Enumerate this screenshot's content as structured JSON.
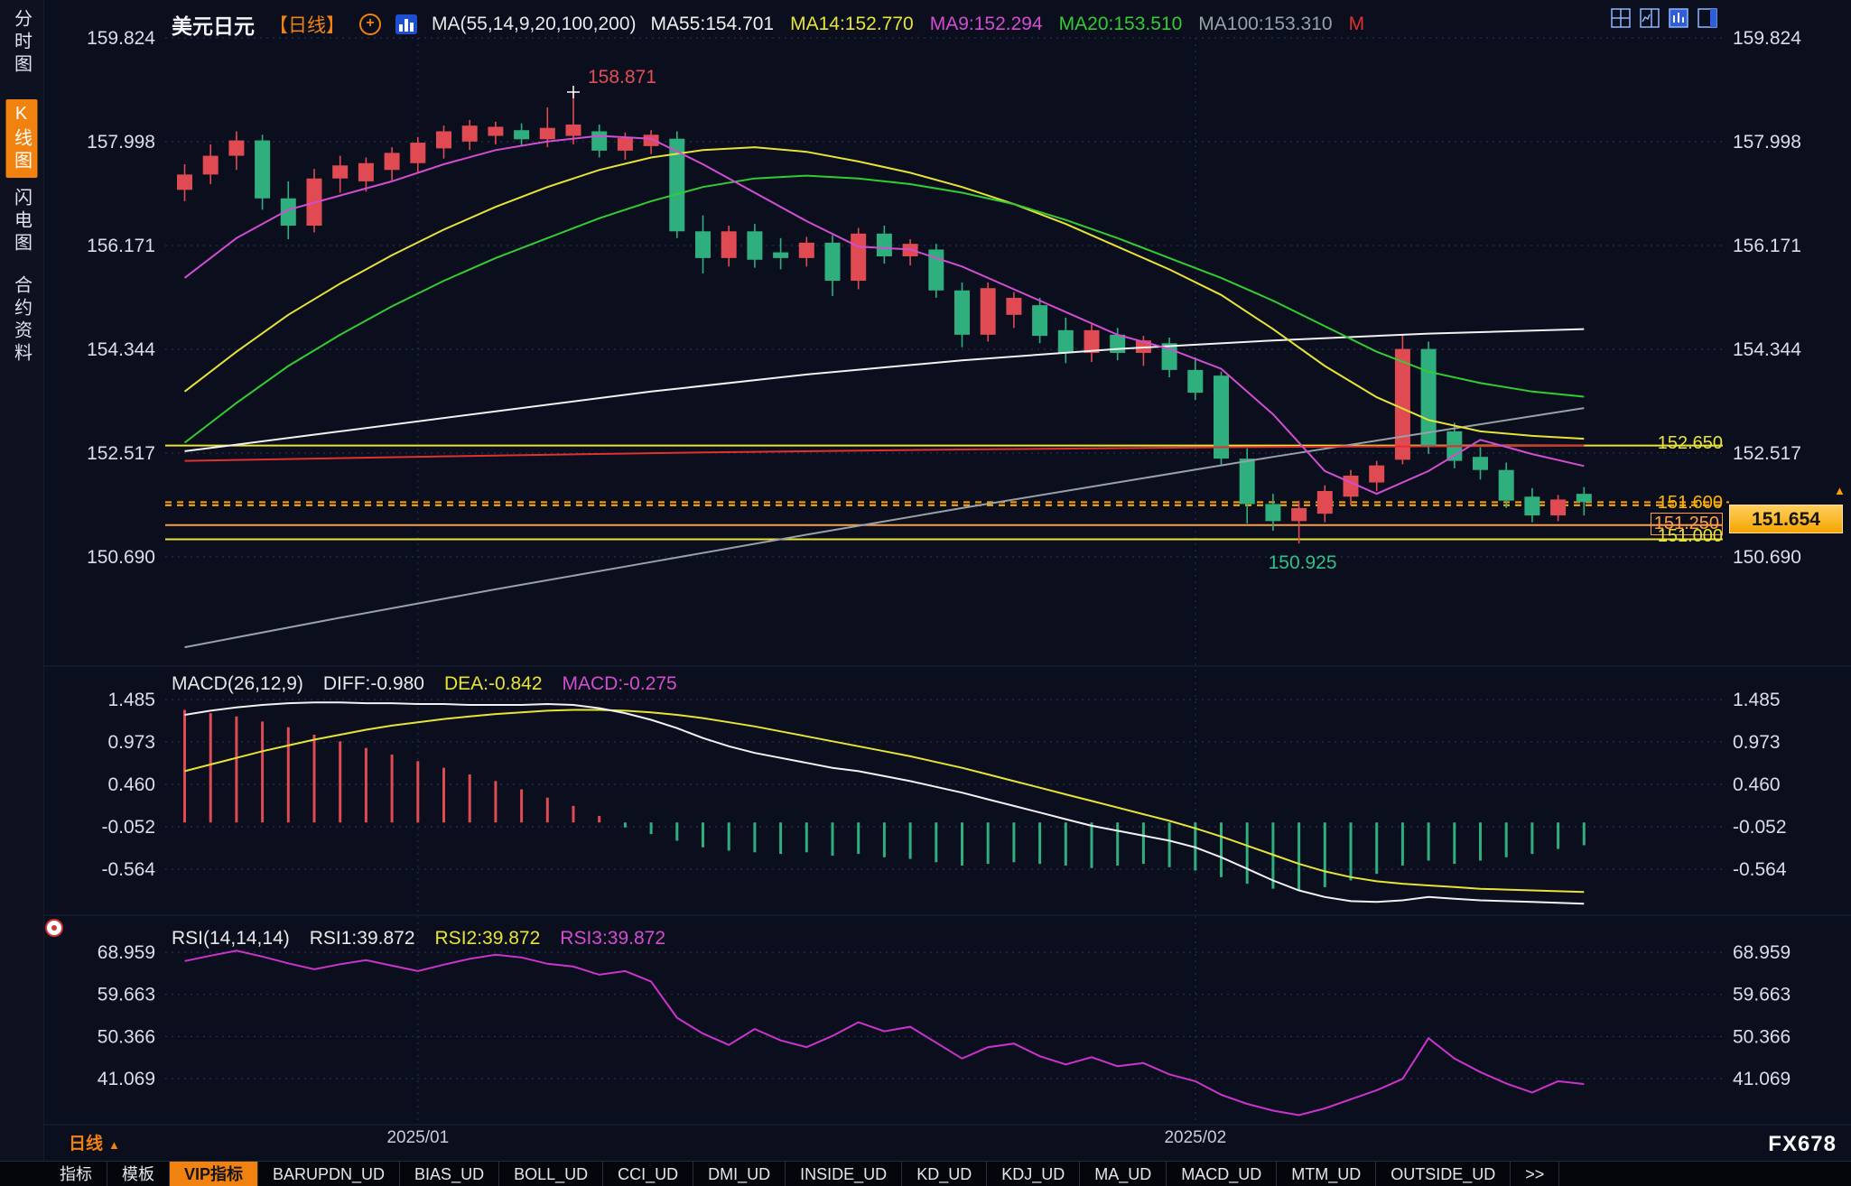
{
  "colors": {
    "bg": "#0b0f1d",
    "up": "#e04a52",
    "down": "#2fae7e",
    "grid": "#2b3456",
    "accent_orange": "#f28210",
    "yellow_line": "#e8e337",
    "price_box": "#f5a500"
  },
  "icons": {
    "plus": "+",
    "up_triangle": "▲"
  },
  "sidebar": {
    "items": [
      {
        "label": "分时图",
        "active": false
      },
      {
        "label": "K线图",
        "active": true
      },
      {
        "label": "闪电图",
        "active": false
      },
      {
        "label": "合约资料",
        "active": false
      }
    ]
  },
  "header": {
    "symbol": "美元日元",
    "period": "【日线】",
    "ma_group": "MA(55,14,9,20,100,200)",
    "ma_values": [
      {
        "label": "MA55:154.701",
        "color": "#f2f2f2"
      },
      {
        "label": "MA14:152.770",
        "color": "#e8e337"
      },
      {
        "label": "MA9:152.294",
        "color": "#d24dd2"
      },
      {
        "label": "MA20:153.510",
        "color": "#33cc33"
      },
      {
        "label": "MA100:153.310",
        "color": "#9aa0a8"
      },
      {
        "label": "M",
        "color": "#e0312e"
      }
    ]
  },
  "macd_header": {
    "title": "MACD(26,12,9)",
    "diff": "DIFF:-0.980",
    "dea": "DEA:-0.842",
    "macd": "MACD:-0.275"
  },
  "rsi_header": {
    "title": "RSI(14,14,14)",
    "rsi1": "RSI1:39.872",
    "rsi2": "RSI2:39.872",
    "rsi3": "RSI3:39.872"
  },
  "annotations": {
    "high": "158.871",
    "low": "150.925"
  },
  "last_price": {
    "label": "151.654",
    "value": 151.654
  },
  "price_lines": [
    {
      "label": "152.650",
      "value": 152.65,
      "color": "#e8e337",
      "style": "solid"
    },
    {
      "label": "151.600",
      "value": 151.6,
      "color": "#ffb400",
      "style": "dashed"
    },
    {
      "label": "151.250",
      "value": 151.25,
      "color": "#ff9d45",
      "style": "solid",
      "boxed": true
    },
    {
      "label": "151.000",
      "value": 151.0,
      "color": "#e8e337",
      "style": "solid"
    }
  ],
  "x_labels": [
    {
      "label": "2025/01",
      "index": 9
    },
    {
      "label": "2025/02",
      "index": 39
    }
  ],
  "period_badge": {
    "label": "日线",
    "arrow": "▲"
  },
  "watermark": "FX678",
  "bottom_tabs": [
    {
      "label": "指标"
    },
    {
      "label": "模板"
    },
    {
      "label": "VIP指标",
      "accent": true
    },
    {
      "label": "BARUPDN_UD"
    },
    {
      "label": "BIAS_UD"
    },
    {
      "label": "BOLL_UD"
    },
    {
      "label": "CCI_UD"
    },
    {
      "label": "DMI_UD"
    },
    {
      "label": "INSIDE_UD"
    },
    {
      "label": "KD_UD"
    },
    {
      "label": "KDJ_UD"
    },
    {
      "label": "MA_UD"
    },
    {
      "label": "MACD_UD"
    },
    {
      "label": "MTM_UD"
    },
    {
      "label": "OUTSIDE_UD"
    },
    {
      "label": ">>"
    }
  ],
  "chart_data": {
    "type": "candlestick",
    "title": "美元日元 日线 (USD/JPY Daily)",
    "ohlc_format": "[open, high, low, close]",
    "price_axis_ticks": [
      159.824,
      157.998,
      156.171,
      154.344,
      152.517,
      150.69
    ],
    "macd_axis_ticks": [
      1.485,
      0.973,
      0.46,
      -0.052,
      -0.564
    ],
    "rsi_axis_ticks": [
      68.959,
      59.663,
      50.366,
      41.069
    ],
    "candles": [
      [
        157.15,
        157.6,
        156.95,
        157.42
      ],
      [
        157.42,
        157.95,
        157.25,
        157.75
      ],
      [
        157.75,
        158.18,
        157.5,
        158.02
      ],
      [
        158.02,
        158.12,
        156.8,
        157.0
      ],
      [
        157.0,
        157.3,
        156.28,
        156.52
      ],
      [
        156.52,
        157.52,
        156.4,
        157.35
      ],
      [
        157.35,
        157.75,
        157.1,
        157.58
      ],
      [
        157.3,
        157.72,
        157.12,
        157.62
      ],
      [
        157.5,
        157.9,
        157.32,
        157.8
      ],
      [
        157.62,
        158.08,
        157.45,
        157.98
      ],
      [
        157.88,
        158.28,
        157.7,
        158.18
      ],
      [
        158.0,
        158.38,
        157.85,
        158.28
      ],
      [
        158.1,
        158.35,
        157.95,
        158.26
      ],
      [
        158.2,
        158.32,
        157.92,
        158.04
      ],
      [
        158.04,
        158.6,
        157.9,
        158.24
      ],
      [
        158.1,
        158.871,
        157.95,
        158.3
      ],
      [
        158.18,
        158.3,
        157.72,
        157.84
      ],
      [
        157.84,
        158.16,
        157.68,
        158.06
      ],
      [
        157.92,
        158.2,
        157.78,
        158.12
      ],
      [
        158.05,
        158.18,
        156.3,
        156.42
      ],
      [
        156.42,
        156.7,
        155.68,
        155.95
      ],
      [
        155.95,
        156.52,
        155.8,
        156.42
      ],
      [
        156.42,
        156.55,
        155.78,
        155.92
      ],
      [
        156.05,
        156.3,
        155.75,
        155.95
      ],
      [
        155.95,
        156.32,
        155.8,
        156.22
      ],
      [
        156.22,
        156.35,
        155.28,
        155.55
      ],
      [
        155.55,
        156.48,
        155.4,
        156.38
      ],
      [
        156.38,
        156.52,
        155.85,
        155.98
      ],
      [
        155.98,
        156.28,
        155.82,
        156.2
      ],
      [
        156.1,
        156.2,
        155.25,
        155.38
      ],
      [
        155.38,
        155.52,
        154.38,
        154.6
      ],
      [
        154.6,
        155.52,
        154.48,
        155.42
      ],
      [
        154.95,
        155.35,
        154.72,
        155.25
      ],
      [
        155.12,
        155.25,
        154.45,
        154.58
      ],
      [
        154.68,
        154.9,
        154.1,
        154.28
      ],
      [
        154.28,
        154.78,
        154.12,
        154.68
      ],
      [
        154.6,
        154.72,
        154.15,
        154.28
      ],
      [
        154.28,
        154.58,
        154.05,
        154.5
      ],
      [
        154.45,
        154.55,
        153.85,
        153.98
      ],
      [
        153.98,
        154.2,
        153.45,
        153.58
      ],
      [
        153.88,
        153.95,
        152.3,
        152.42
      ],
      [
        152.42,
        152.6,
        151.28,
        151.62
      ],
      [
        151.62,
        151.8,
        151.15,
        151.32
      ],
      [
        151.32,
        151.68,
        150.925,
        151.55
      ],
      [
        151.45,
        151.95,
        151.3,
        151.85
      ],
      [
        151.75,
        152.22,
        151.6,
        152.12
      ],
      [
        152.0,
        152.38,
        151.85,
        152.3
      ],
      [
        152.4,
        154.6,
        152.32,
        154.35
      ],
      [
        154.35,
        154.48,
        152.5,
        152.65
      ],
      [
        152.9,
        153.05,
        152.25,
        152.38
      ],
      [
        152.45,
        152.62,
        152.05,
        152.22
      ],
      [
        152.22,
        152.35,
        151.55,
        151.68
      ],
      [
        151.75,
        151.9,
        151.3,
        151.42
      ],
      [
        151.42,
        151.78,
        151.32,
        151.7
      ],
      [
        151.8,
        151.92,
        151.42,
        151.654
      ]
    ],
    "ma_lines": {
      "ma9": {
        "color": "#d24dd2",
        "points": [
          [
            0,
            155.6
          ],
          [
            2,
            156.3
          ],
          [
            4,
            156.8
          ],
          [
            6,
            157.05
          ],
          [
            8,
            157.3
          ],
          [
            10,
            157.6
          ],
          [
            12,
            157.85
          ],
          [
            14,
            158.0
          ],
          [
            16,
            158.1
          ],
          [
            18,
            158.05
          ],
          [
            20,
            157.6
          ],
          [
            22,
            157.1
          ],
          [
            24,
            156.6
          ],
          [
            26,
            156.15
          ],
          [
            28,
            156.1
          ],
          [
            30,
            155.8
          ],
          [
            32,
            155.4
          ],
          [
            34,
            155.0
          ],
          [
            36,
            154.6
          ],
          [
            38,
            154.35
          ],
          [
            40,
            154.0
          ],
          [
            42,
            153.2
          ],
          [
            44,
            152.2
          ],
          [
            46,
            151.8
          ],
          [
            48,
            152.2
          ],
          [
            50,
            152.75
          ],
          [
            52,
            152.5
          ],
          [
            54,
            152.29
          ]
        ]
      },
      "ma14": {
        "color": "#e8e337",
        "points": [
          [
            0,
            153.6
          ],
          [
            2,
            154.3
          ],
          [
            4,
            154.95
          ],
          [
            6,
            155.5
          ],
          [
            8,
            156.0
          ],
          [
            10,
            156.45
          ],
          [
            12,
            156.85
          ],
          [
            14,
            157.2
          ],
          [
            16,
            157.5
          ],
          [
            18,
            157.72
          ],
          [
            20,
            157.85
          ],
          [
            22,
            157.9
          ],
          [
            24,
            157.82
          ],
          [
            26,
            157.65
          ],
          [
            28,
            157.45
          ],
          [
            30,
            157.2
          ],
          [
            32,
            156.9
          ],
          [
            34,
            156.55
          ],
          [
            36,
            156.15
          ],
          [
            38,
            155.75
          ],
          [
            40,
            155.3
          ],
          [
            42,
            154.7
          ],
          [
            44,
            154.05
          ],
          [
            46,
            153.5
          ],
          [
            48,
            153.1
          ],
          [
            50,
            152.9
          ],
          [
            52,
            152.82
          ],
          [
            54,
            152.77
          ]
        ]
      },
      "ma20": {
        "color": "#33cc33",
        "points": [
          [
            0,
            152.7
          ],
          [
            2,
            153.4
          ],
          [
            4,
            154.05
          ],
          [
            6,
            154.6
          ],
          [
            8,
            155.1
          ],
          [
            10,
            155.55
          ],
          [
            12,
            155.95
          ],
          [
            14,
            156.3
          ],
          [
            16,
            156.65
          ],
          [
            18,
            156.95
          ],
          [
            20,
            157.2
          ],
          [
            22,
            157.35
          ],
          [
            24,
            157.4
          ],
          [
            26,
            157.35
          ],
          [
            28,
            157.25
          ],
          [
            30,
            157.1
          ],
          [
            32,
            156.9
          ],
          [
            34,
            156.62
          ],
          [
            36,
            156.3
          ],
          [
            38,
            155.95
          ],
          [
            40,
            155.6
          ],
          [
            42,
            155.2
          ],
          [
            44,
            154.75
          ],
          [
            46,
            154.3
          ],
          [
            48,
            153.95
          ],
          [
            50,
            153.75
          ],
          [
            52,
            153.6
          ],
          [
            54,
            153.51
          ]
        ]
      },
      "ma55": {
        "color": "#f2f2f2",
        "points": [
          [
            0,
            152.55
          ],
          [
            6,
            152.9
          ],
          [
            12,
            153.25
          ],
          [
            18,
            153.6
          ],
          [
            24,
            153.9
          ],
          [
            30,
            154.15
          ],
          [
            36,
            154.35
          ],
          [
            42,
            154.5
          ],
          [
            48,
            154.62
          ],
          [
            54,
            154.7
          ]
        ]
      },
      "ma100": {
        "color": "#9aa0a8",
        "points": [
          [
            0,
            149.1
          ],
          [
            6,
            149.62
          ],
          [
            12,
            150.12
          ],
          [
            18,
            150.6
          ],
          [
            24,
            151.08
          ],
          [
            30,
            151.55
          ],
          [
            36,
            152.0
          ],
          [
            42,
            152.45
          ],
          [
            48,
            152.88
          ],
          [
            54,
            153.31
          ]
        ]
      },
      "ma200": {
        "color": "#e0312e",
        "points": [
          [
            0,
            152.38
          ],
          [
            10,
            152.46
          ],
          [
            20,
            152.53
          ],
          [
            30,
            152.58
          ],
          [
            40,
            152.62
          ],
          [
            54,
            152.65
          ]
        ]
      }
    },
    "macd": {
      "hist": [
        1.36,
        1.32,
        1.28,
        1.22,
        1.15,
        1.06,
        0.98,
        0.9,
        0.82,
        0.74,
        0.66,
        0.58,
        0.5,
        0.4,
        0.3,
        0.2,
        0.08,
        -0.06,
        -0.14,
        -0.22,
        -0.3,
        -0.34,
        -0.36,
        -0.38,
        -0.36,
        -0.4,
        -0.38,
        -0.42,
        -0.44,
        -0.48,
        -0.52,
        -0.5,
        -0.48,
        -0.5,
        -0.52,
        -0.55,
        -0.52,
        -0.5,
        -0.54,
        -0.58,
        -0.66,
        -0.74,
        -0.8,
        -0.82,
        -0.78,
        -0.7,
        -0.62,
        -0.52,
        -0.46,
        -0.5,
        -0.46,
        -0.42,
        -0.38,
        -0.32,
        -0.275
      ],
      "diff": [
        1.3,
        1.35,
        1.39,
        1.42,
        1.44,
        1.45,
        1.45,
        1.44,
        1.44,
        1.43,
        1.43,
        1.42,
        1.42,
        1.42,
        1.43,
        1.42,
        1.38,
        1.32,
        1.24,
        1.14,
        1.02,
        0.92,
        0.84,
        0.78,
        0.72,
        0.66,
        0.62,
        0.56,
        0.5,
        0.43,
        0.36,
        0.28,
        0.2,
        0.12,
        0.04,
        -0.04,
        -0.1,
        -0.16,
        -0.22,
        -0.3,
        -0.42,
        -0.56,
        -0.7,
        -0.82,
        -0.9,
        -0.95,
        -0.96,
        -0.94,
        -0.9,
        -0.92,
        -0.94,
        -0.95,
        -0.96,
        -0.97,
        -0.98
      ],
      "dea": [
        0.62,
        0.7,
        0.78,
        0.86,
        0.93,
        1.0,
        1.06,
        1.12,
        1.17,
        1.21,
        1.25,
        1.28,
        1.31,
        1.33,
        1.35,
        1.36,
        1.36,
        1.35,
        1.33,
        1.3,
        1.26,
        1.21,
        1.16,
        1.1,
        1.04,
        0.98,
        0.92,
        0.86,
        0.8,
        0.73,
        0.66,
        0.58,
        0.5,
        0.42,
        0.34,
        0.26,
        0.18,
        0.1,
        0.02,
        -0.07,
        -0.17,
        -0.28,
        -0.39,
        -0.5,
        -0.59,
        -0.66,
        -0.71,
        -0.74,
        -0.76,
        -0.78,
        -0.8,
        -0.81,
        -0.82,
        -0.83,
        -0.84
      ]
    },
    "rsi": [
      67.0,
      68.2,
      69.3,
      68.0,
      66.5,
      65.2,
      66.3,
      67.2,
      66.0,
      64.8,
      66.2,
      67.5,
      68.4,
      67.8,
      66.4,
      65.8,
      64.0,
      64.8,
      62.5,
      54.5,
      51.0,
      48.5,
      52.0,
      49.5,
      48.0,
      50.5,
      53.5,
      51.5,
      52.5,
      49.0,
      45.5,
      48.0,
      48.8,
      46.0,
      44.2,
      45.8,
      43.8,
      44.5,
      42.0,
      40.5,
      37.5,
      35.5,
      34.0,
      33.0,
      34.5,
      36.5,
      38.5,
      41.0,
      50.0,
      45.5,
      42.5,
      40.0,
      38.0,
      40.5,
      39.872
    ]
  }
}
